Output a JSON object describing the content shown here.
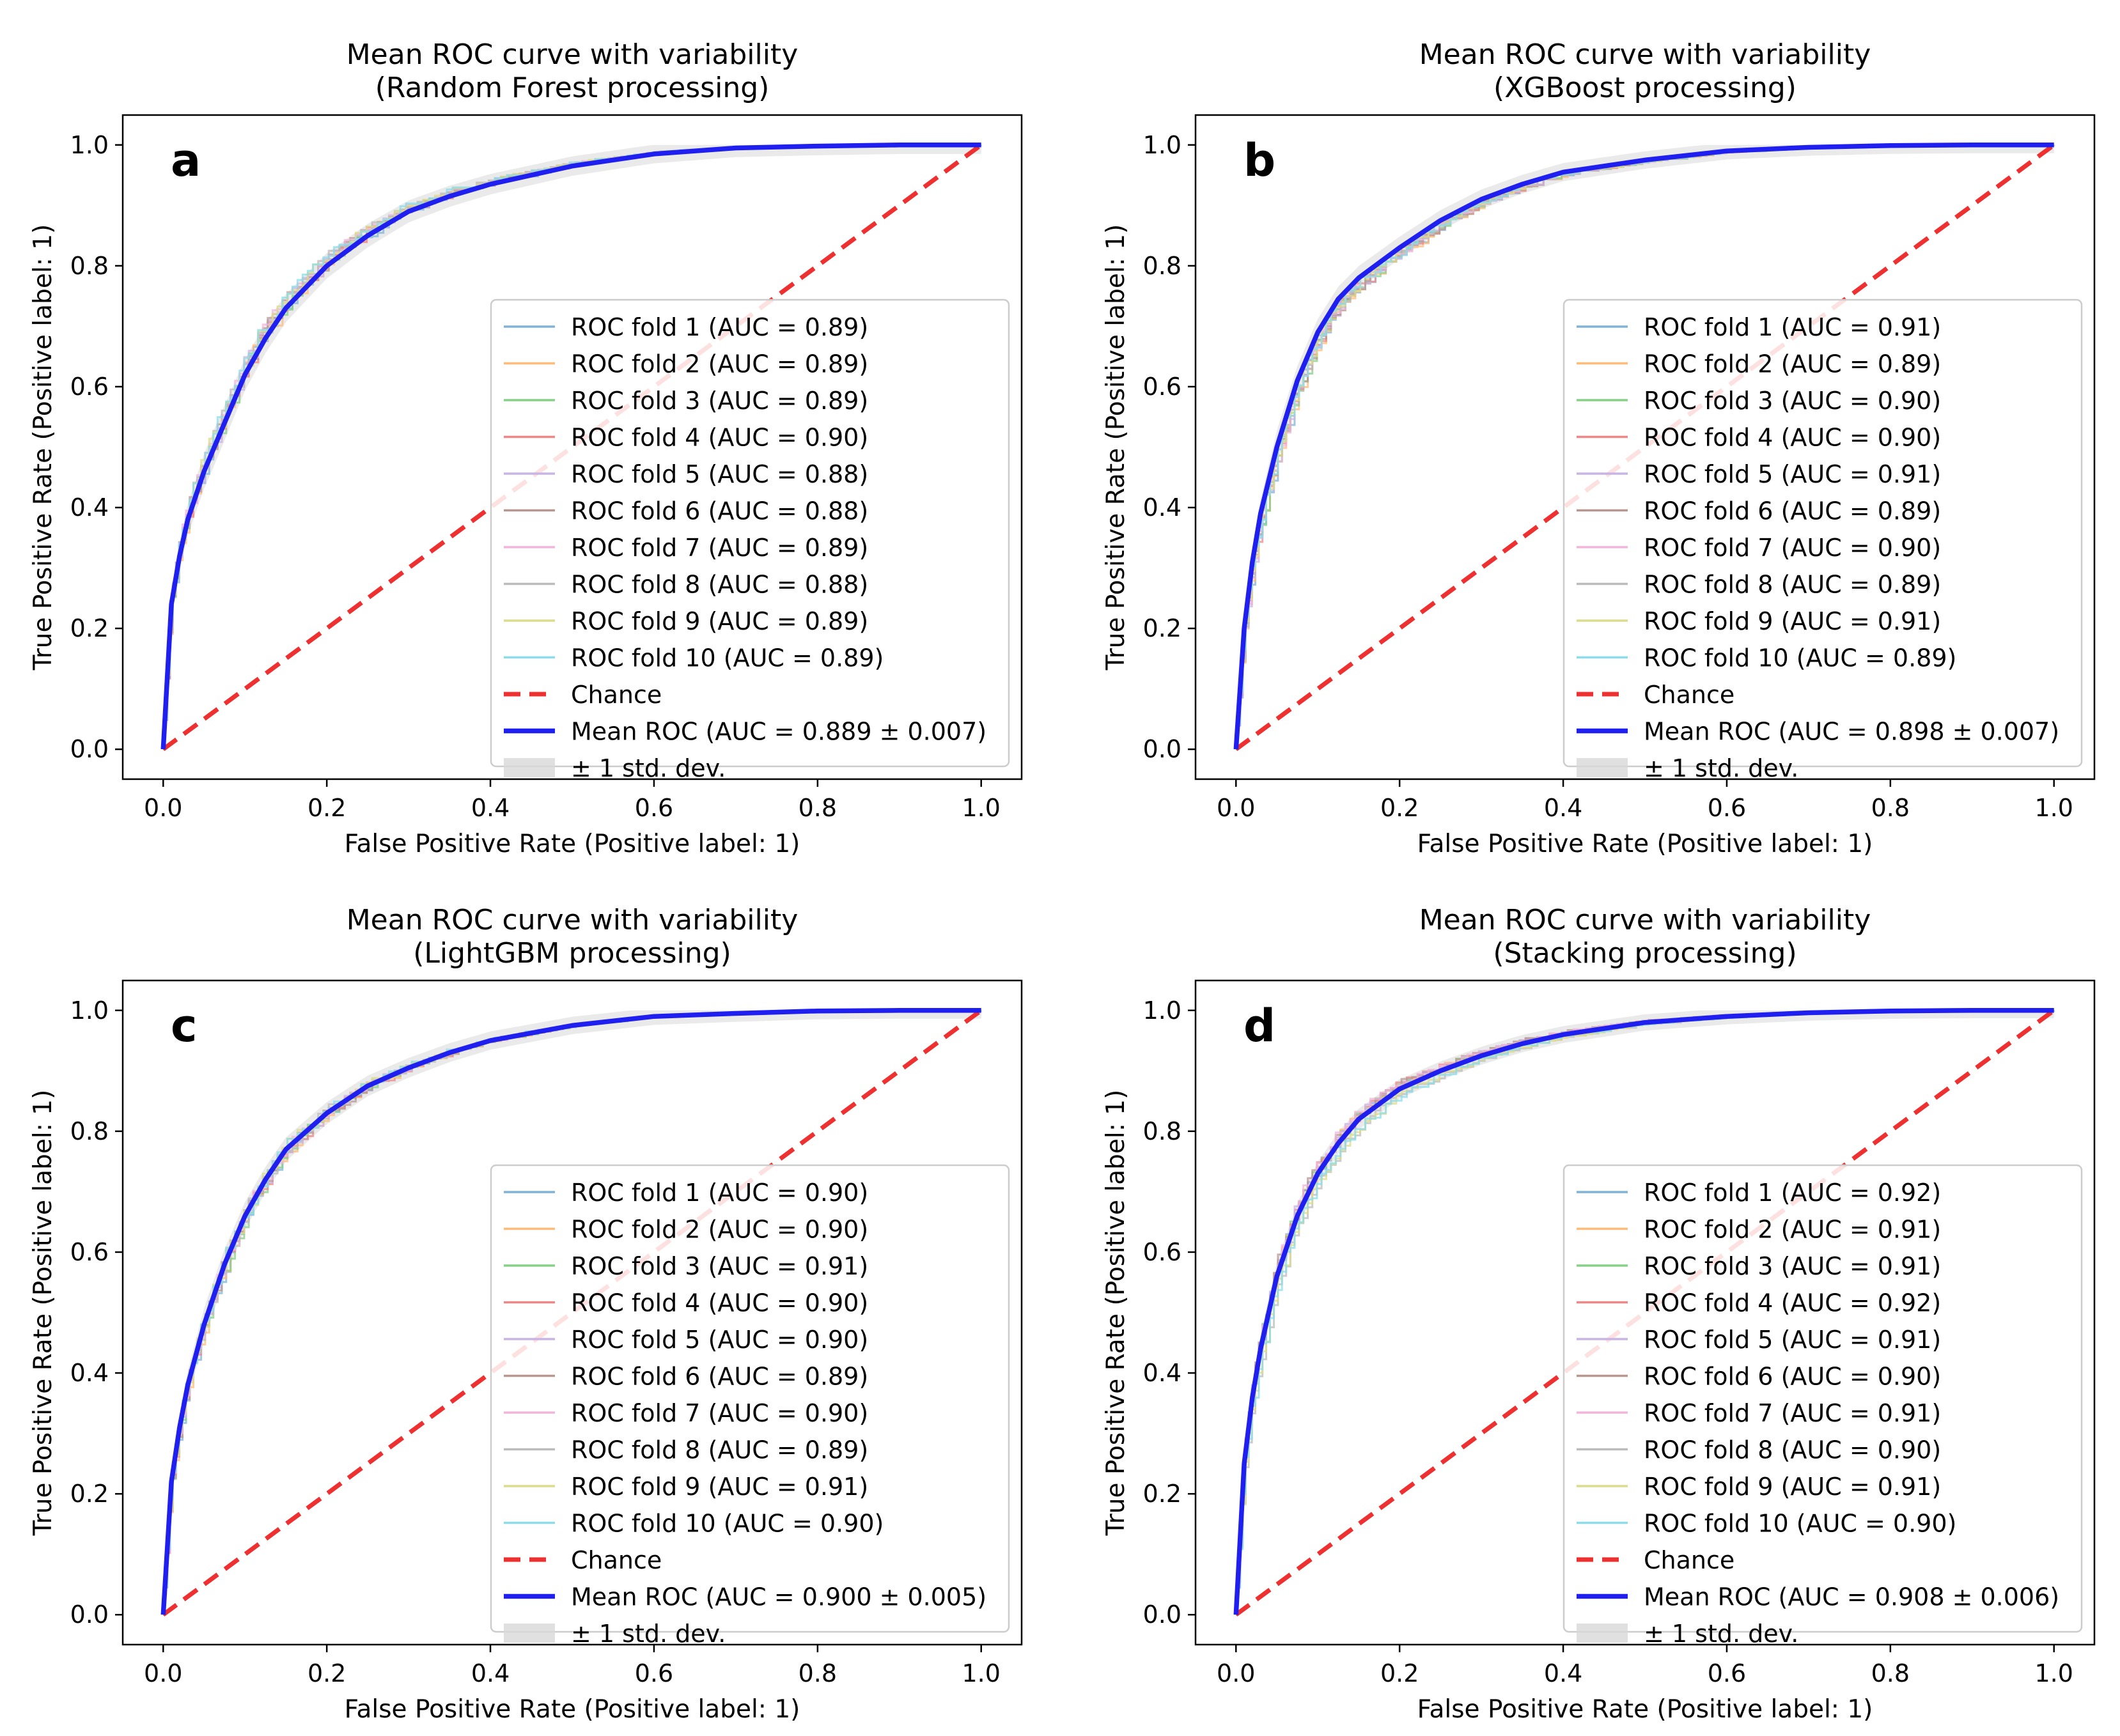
{
  "colors": {
    "mean": "#1f1ff0",
    "chance": "#ee3030",
    "band": "#d8d8d8",
    "folds": [
      "#7fb3d9",
      "#ffbb78",
      "#87d087",
      "#ee8888",
      "#c8b4e6",
      "#b69890",
      "#f2b6dc",
      "#bcbcbc",
      "#dcdc8a",
      "#8cdcea"
    ]
  },
  "chart_data": [
    {
      "type": "line",
      "panel": "a",
      "title": "Mean ROC curve with variability",
      "subtitle": "(Random Forest processing)",
      "xlabel": "False Positive Rate (Positive label: 1)",
      "ylabel": "True Positive Rate (Positive label: 1)",
      "xlim": [
        0,
        1
      ],
      "ylim": [
        0,
        1
      ],
      "xticks": [
        "0.0",
        "0.2",
        "0.4",
        "0.6",
        "0.8",
        "1.0"
      ],
      "yticks": [
        "0.0",
        "0.2",
        "0.4",
        "0.6",
        "0.8",
        "1.0"
      ],
      "legend_position": "lower right",
      "mean_roc": {
        "fpr": [
          0,
          0.01,
          0.02,
          0.03,
          0.05,
          0.075,
          0.1,
          0.125,
          0.15,
          0.2,
          0.25,
          0.3,
          0.35,
          0.4,
          0.5,
          0.6,
          0.7,
          0.8,
          0.9,
          1.0
        ],
        "tpr": [
          0,
          0.24,
          0.32,
          0.38,
          0.46,
          0.54,
          0.62,
          0.68,
          0.73,
          0.8,
          0.85,
          0.89,
          0.915,
          0.935,
          0.965,
          0.985,
          0.995,
          0.998,
          1.0,
          1.0
        ]
      },
      "std_dev": 0.025,
      "legend": [
        "ROC fold 1 (AUC = 0.89)",
        "ROC fold 2 (AUC = 0.89)",
        "ROC fold 3 (AUC = 0.89)",
        "ROC fold 4 (AUC = 0.90)",
        "ROC fold 5 (AUC = 0.88)",
        "ROC fold 6 (AUC = 0.88)",
        "ROC fold 7 (AUC = 0.89)",
        "ROC fold 8 (AUC = 0.88)",
        "ROC fold 9 (AUC = 0.89)",
        "ROC fold 10 (AUC = 0.89)",
        "Chance",
        "Mean ROC (AUC = 0.889 ± 0.007)",
        "± 1 std. dev."
      ]
    },
    {
      "type": "line",
      "panel": "b",
      "title": "Mean ROC curve with variability",
      "subtitle": "(XGBoost processing)",
      "xlabel": "False Positive Rate (Positive label: 1)",
      "ylabel": "True Positive Rate (Positive label: 1)",
      "xlim": [
        0,
        1
      ],
      "ylim": [
        0,
        1
      ],
      "xticks": [
        "0.0",
        "0.2",
        "0.4",
        "0.6",
        "0.8",
        "1.0"
      ],
      "yticks": [
        "0.0",
        "0.2",
        "0.4",
        "0.6",
        "0.8",
        "1.0"
      ],
      "legend_position": "lower right",
      "mean_roc": {
        "fpr": [
          0,
          0.01,
          0.02,
          0.03,
          0.05,
          0.075,
          0.1,
          0.125,
          0.15,
          0.2,
          0.25,
          0.3,
          0.35,
          0.4,
          0.5,
          0.6,
          0.7,
          0.8,
          0.9,
          1.0
        ],
        "tpr": [
          0,
          0.2,
          0.31,
          0.39,
          0.5,
          0.61,
          0.69,
          0.745,
          0.78,
          0.83,
          0.875,
          0.91,
          0.935,
          0.955,
          0.975,
          0.99,
          0.996,
          0.999,
          1.0,
          1.0
        ]
      },
      "std_dev": 0.022,
      "legend": [
        "ROC fold 1 (AUC = 0.91)",
        "ROC fold 2 (AUC = 0.89)",
        "ROC fold 3 (AUC = 0.90)",
        "ROC fold 4 (AUC = 0.90)",
        "ROC fold 5 (AUC = 0.91)",
        "ROC fold 6 (AUC = 0.89)",
        "ROC fold 7 (AUC = 0.90)",
        "ROC fold 8 (AUC = 0.89)",
        "ROC fold 9 (AUC = 0.91)",
        "ROC fold 10 (AUC = 0.89)",
        "Chance",
        "Mean ROC (AUC = 0.898 ± 0.007)",
        "± 1 std. dev."
      ]
    },
    {
      "type": "line",
      "panel": "c",
      "title": "Mean ROC curve with variability",
      "subtitle": "(LightGBM processing)",
      "xlabel": "False Positive Rate (Positive label: 1)",
      "ylabel": "True Positive Rate (Positive label: 1)",
      "xlim": [
        0,
        1
      ],
      "ylim": [
        0,
        1
      ],
      "xticks": [
        "0.0",
        "0.2",
        "0.4",
        "0.6",
        "0.8",
        "1.0"
      ],
      "yticks": [
        "0.0",
        "0.2",
        "0.4",
        "0.6",
        "0.8",
        "1.0"
      ],
      "legend_position": "lower right",
      "mean_roc": {
        "fpr": [
          0,
          0.01,
          0.02,
          0.03,
          0.05,
          0.075,
          0.1,
          0.125,
          0.15,
          0.2,
          0.25,
          0.3,
          0.35,
          0.4,
          0.5,
          0.6,
          0.7,
          0.8,
          0.9,
          1.0
        ],
        "tpr": [
          0,
          0.22,
          0.31,
          0.38,
          0.48,
          0.58,
          0.66,
          0.72,
          0.77,
          0.83,
          0.875,
          0.905,
          0.93,
          0.95,
          0.975,
          0.99,
          0.995,
          0.999,
          1.0,
          1.0
        ]
      },
      "std_dev": 0.022,
      "legend": [
        "ROC fold 1 (AUC = 0.90)",
        "ROC fold 2 (AUC = 0.90)",
        "ROC fold 3 (AUC = 0.91)",
        "ROC fold 4 (AUC = 0.90)",
        "ROC fold 5 (AUC = 0.90)",
        "ROC fold 6 (AUC = 0.89)",
        "ROC fold 7 (AUC = 0.90)",
        "ROC fold 8 (AUC = 0.89)",
        "ROC fold 9 (AUC = 0.91)",
        "ROC fold 10 (AUC = 0.90)",
        "Chance",
        "Mean ROC (AUC = 0.900 ± 0.005)",
        "± 1 std. dev."
      ]
    },
    {
      "type": "line",
      "panel": "d",
      "title": "Mean ROC curve with variability",
      "subtitle": "(Stacking processing)",
      "xlabel": "False Positive Rate (Positive label: 1)",
      "ylabel": "True Positive Rate (Positive label: 1)",
      "xlim": [
        0,
        1
      ],
      "ylim": [
        0,
        1
      ],
      "xticks": [
        "0.0",
        "0.2",
        "0.4",
        "0.6",
        "0.8",
        "1.0"
      ],
      "yticks": [
        "0.0",
        "0.2",
        "0.4",
        "0.6",
        "0.8",
        "1.0"
      ],
      "legend_position": "lower right",
      "mean_roc": {
        "fpr": [
          0,
          0.01,
          0.02,
          0.03,
          0.05,
          0.075,
          0.1,
          0.125,
          0.15,
          0.2,
          0.25,
          0.3,
          0.35,
          0.4,
          0.5,
          0.6,
          0.7,
          0.8,
          0.9,
          1.0
        ],
        "tpr": [
          0,
          0.25,
          0.36,
          0.44,
          0.56,
          0.66,
          0.73,
          0.78,
          0.82,
          0.87,
          0.9,
          0.925,
          0.945,
          0.96,
          0.98,
          0.99,
          0.996,
          0.999,
          1.0,
          1.0
        ]
      },
      "std_dev": 0.02,
      "legend": [
        "ROC fold 1 (AUC = 0.92)",
        "ROC fold 2 (AUC = 0.91)",
        "ROC fold 3 (AUC = 0.91)",
        "ROC fold 4 (AUC = 0.92)",
        "ROC fold 5 (AUC = 0.91)",
        "ROC fold 6 (AUC = 0.90)",
        "ROC fold 7 (AUC = 0.91)",
        "ROC fold 8 (AUC = 0.90)",
        "ROC fold 9 (AUC = 0.91)",
        "ROC fold 10 (AUC = 0.90)",
        "Chance",
        "Mean ROC (AUC = 0.908 ± 0.006)",
        "± 1 std. dev."
      ]
    }
  ]
}
